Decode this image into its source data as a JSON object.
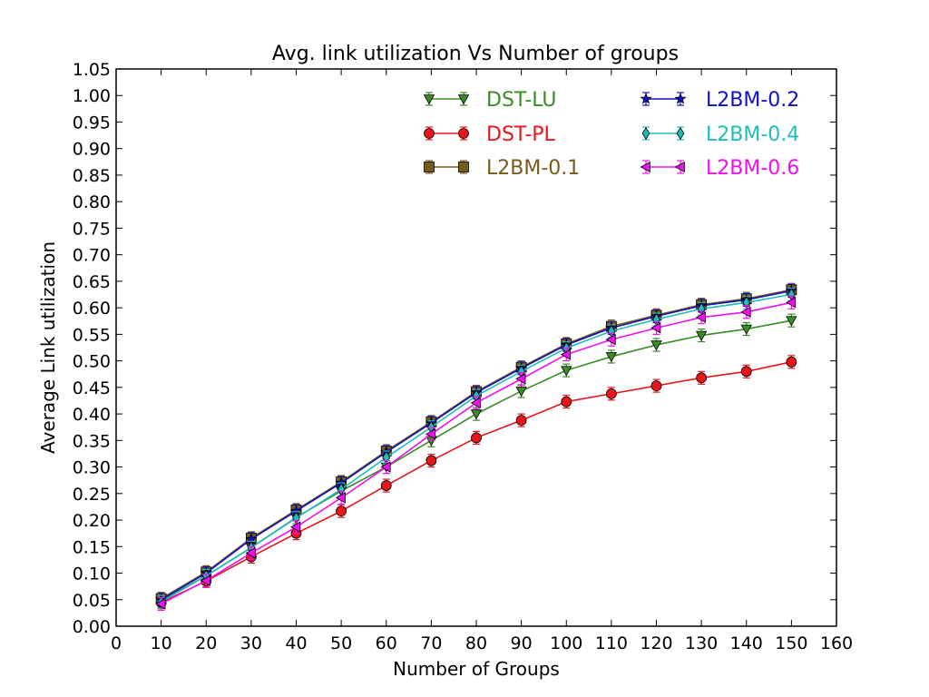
{
  "chart_data": {
    "type": "line",
    "title": "Avg. link utilization Vs Number of groups",
    "xlabel": "Number of Groups",
    "ylabel": "Average Link utilization",
    "xlim": [
      0,
      160
    ],
    "ylim": [
      0,
      1.05
    ],
    "xticks": [
      "0",
      "10",
      "20",
      "30",
      "40",
      "50",
      "60",
      "70",
      "80",
      "90",
      "100",
      "110",
      "120",
      "130",
      "140",
      "150",
      "160"
    ],
    "yticks": [
      "0.00",
      "0.05",
      "0.10",
      "0.15",
      "0.20",
      "0.25",
      "0.30",
      "0.35",
      "0.40",
      "0.45",
      "0.50",
      "0.55",
      "0.60",
      "0.65",
      "0.70",
      "0.75",
      "0.80",
      "0.85",
      "0.90",
      "0.95",
      "1.00",
      "1.05"
    ],
    "grid": false,
    "legend_position": "top-right",
    "x": [
      10,
      20,
      30,
      40,
      50,
      60,
      70,
      80,
      90,
      100,
      110,
      120,
      130,
      140,
      150
    ],
    "series": [
      {
        "name": "DST-LU",
        "color": "#3a8c27",
        "marker": "triangle-down",
        "values": [
          0.048,
          0.095,
          0.148,
          0.205,
          0.255,
          0.3,
          0.35,
          0.4,
          0.443,
          0.482,
          0.508,
          0.53,
          0.548,
          0.56,
          0.576
        ]
      },
      {
        "name": "DST-PL",
        "color": "#e8161b",
        "marker": "circle",
        "values": [
          0.045,
          0.085,
          0.131,
          0.175,
          0.217,
          0.265,
          0.312,
          0.355,
          0.388,
          0.423,
          0.438,
          0.453,
          0.468,
          0.48,
          0.498
        ]
      },
      {
        "name": "L2BM-0.1",
        "color": "#765a1a",
        "marker": "square",
        "values": [
          0.052,
          0.102,
          0.166,
          0.219,
          0.272,
          0.33,
          0.385,
          0.442,
          0.488,
          0.532,
          0.565,
          0.586,
          0.606,
          0.617,
          0.634
        ]
      },
      {
        "name": "L2BM-0.2",
        "color": "#1010c8",
        "marker": "star",
        "values": [
          0.05,
          0.1,
          0.164,
          0.217,
          0.27,
          0.328,
          0.383,
          0.44,
          0.486,
          0.53,
          0.562,
          0.584,
          0.604,
          0.615,
          0.632
        ]
      },
      {
        "name": "L2BM-0.4",
        "color": "#1ebcbc",
        "marker": "diamond",
        "values": [
          0.046,
          0.095,
          0.148,
          0.204,
          0.258,
          0.318,
          0.375,
          0.434,
          0.48,
          0.524,
          0.556,
          0.578,
          0.598,
          0.61,
          0.625
        ]
      },
      {
        "name": "L2BM-0.6",
        "color": "#ee10ee",
        "marker": "triangle-left",
        "values": [
          0.042,
          0.086,
          0.138,
          0.187,
          0.242,
          0.3,
          0.362,
          0.421,
          0.466,
          0.512,
          0.54,
          0.562,
          0.582,
          0.592,
          0.61
        ]
      }
    ]
  }
}
